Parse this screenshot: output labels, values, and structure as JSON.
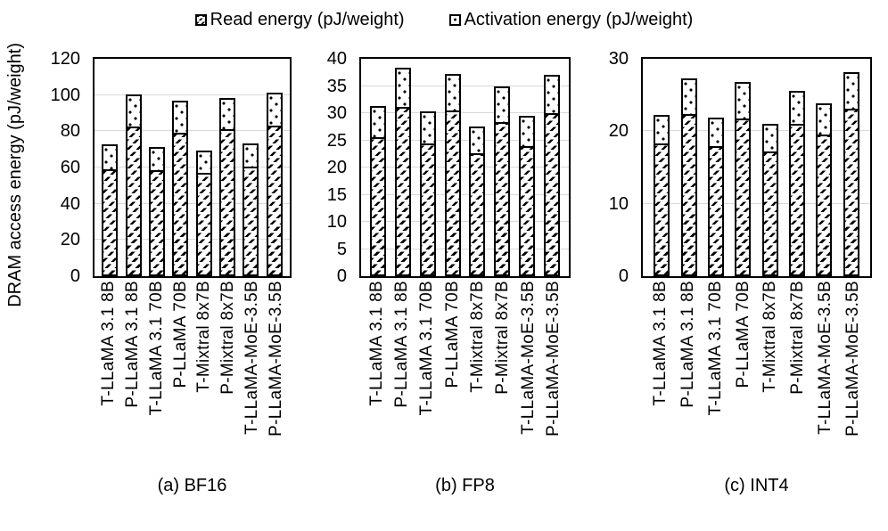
{
  "legend": {
    "items": [
      {
        "name": "read",
        "label": "Read energy (pJ/weight)",
        "pattern": "hatch"
      },
      {
        "name": "activation",
        "label": "Activation energy (pJ/weight)",
        "pattern": "dots"
      }
    ]
  },
  "y_axis_label": "DRAM access energy (pJ/weight)",
  "colors": {
    "bar_border": "#000000",
    "gridline": "#d9d9d9",
    "background": "#ffffff",
    "text": "#000000"
  },
  "chart_data": [
    {
      "type": "bar",
      "stacked": true,
      "title": "(a) BF16",
      "xlabel": "",
      "ylabel": "DRAM access energy (pJ/weight)",
      "ylim": [
        0,
        120
      ],
      "yticks": [
        120,
        100,
        80,
        60,
        40,
        20,
        0
      ],
      "gridlines": [
        20,
        40,
        60,
        80,
        100
      ],
      "legend_position": "top",
      "grid": true,
      "categories": [
        "T-LLaMA 3.1 8B",
        "P-LLaMA 3.1 8B",
        "T-LLaMA 3.1 70B",
        "P-LLaMA 70B",
        "T-Mixtral 8x7B",
        "P-Mixtral 8x7B",
        "T-LLaMA-MoE-3.5B",
        "P-LLaMA-MoE-3.5B"
      ],
      "series": [
        {
          "name": "Read energy (pJ/weight)",
          "values": [
            59,
            82.5,
            58.5,
            79,
            57,
            81,
            60.5,
            83
          ]
        },
        {
          "name": "Activation energy (pJ/weight)",
          "values": [
            14,
            18,
            13,
            18,
            12.5,
            17.5,
            13,
            18.5
          ]
        }
      ]
    },
    {
      "type": "bar",
      "stacked": true,
      "title": "(b) FP8",
      "xlabel": "",
      "ylabel": "DRAM access energy (pJ/weight)",
      "ylim": [
        0,
        40
      ],
      "yticks": [
        40,
        35,
        30,
        25,
        20,
        15,
        10,
        5,
        0
      ],
      "gridlines": [
        5,
        10,
        15,
        20,
        25,
        30,
        35
      ],
      "legend_position": "top",
      "grid": true,
      "categories": [
        "T-LLaMA 3.1 8B",
        "P-LLaMA 3.1 8B",
        "T-LLaMA 3.1 70B",
        "P-LLaMA 70B",
        "T-Mixtral 8x7B",
        "P-Mixtral 8x7B",
        "T-LLaMA-MoE-3.5B",
        "P-LLaMA-MoE-3.5B"
      ],
      "series": [
        {
          "name": "Read energy (pJ/weight)",
          "values": [
            25.5,
            31.2,
            24.5,
            30.5,
            22.7,
            28.3,
            24,
            30
          ]
        },
        {
          "name": "Activation energy (pJ/weight)",
          "values": [
            5.8,
            7.1,
            5.8,
            6.7,
            4.9,
            6.6,
            5.5,
            7
          ]
        }
      ]
    },
    {
      "type": "bar",
      "stacked": true,
      "title": "(c) INT4",
      "xlabel": "",
      "ylabel": "DRAM access energy (pJ/weight)",
      "ylim": [
        0,
        30
      ],
      "yticks": [
        30,
        20,
        10,
        0
      ],
      "gridlines": [
        10,
        20
      ],
      "legend_position": "top",
      "grid": true,
      "categories": [
        "T-LLaMA 3.1 8B",
        "P-LLaMA 3.1 8B",
        "T-LLaMA 3.1 70B",
        "P-LLaMA 70B",
        "T-Mixtral 8x7B",
        "P-Mixtral 8x7B",
        "T-LLaMA-MoE-3.5B",
        "P-LLaMA-MoE-3.5B"
      ],
      "series": [
        {
          "name": "Read energy (pJ/weight)",
          "values": [
            18.3,
            22.4,
            18,
            21.8,
            17.2,
            21,
            19.6,
            23.1
          ]
        },
        {
          "name": "Activation energy (pJ/weight)",
          "values": [
            4,
            4.9,
            3.9,
            5,
            3.8,
            4.6,
            4.2,
            5.1
          ]
        }
      ]
    }
  ]
}
